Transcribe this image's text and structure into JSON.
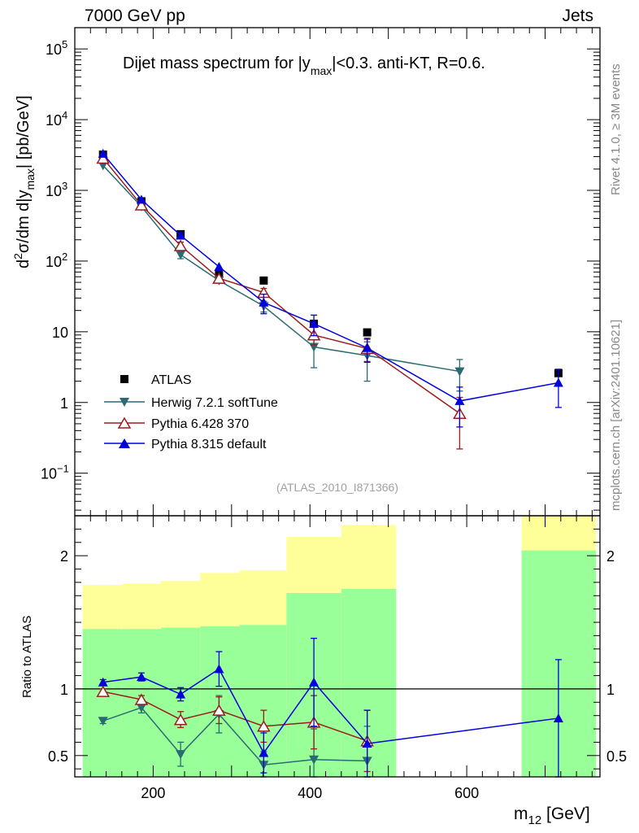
{
  "header": {
    "left": "7000 GeV pp",
    "right": "Jets"
  },
  "side": {
    "top": "Rivet 4.1.0, ≥ 3M events",
    "bottom": "mcplots.cern.ch [arXiv:2401.10621]"
  },
  "colors": {
    "atlas": "#000000",
    "herwig": "#2a6a72",
    "pythia6": "#9b1c1c",
    "pythia8": "#0000dd",
    "band_yellow": "#ffff99",
    "band_green": "#99ff99"
  },
  "chart_data": [
    {
      "type": "scatter",
      "title": "Dijet mass spectrum for |y_max|<0.3.  anti-KT, R=0.6.",
      "title_parts": {
        "a": "Dijet mass spectrum for |y",
        "sub": "max",
        "b": "|<0.3.  anti-KT, R=0.6."
      },
      "ylabel": "d²σ/dm d|y_max| [pb/GeV]",
      "ylabel_parts": {
        "d": "d",
        "sup2": "2",
        "mid": "σ/dm d|y",
        "sub": "max",
        "end": "| [pb/GeV]"
      },
      "yscale": "log",
      "ylim": [
        0.025,
        200000
      ],
      "xlim": [
        100,
        770
      ],
      "yticks": [
        {
          "v": 0.1,
          "base": "10",
          "exp": "−1"
        },
        {
          "v": 1,
          "base": "1",
          "exp": ""
        },
        {
          "v": 10,
          "base": "10",
          "exp": ""
        },
        {
          "v": 100,
          "base": "10",
          "exp": "2"
        },
        {
          "v": 1000,
          "base": "10",
          "exp": "3"
        },
        {
          "v": 10000,
          "base": "10",
          "exp": "4"
        },
        {
          "v": 100000,
          "base": "10",
          "exp": "5"
        }
      ],
      "watermark": "(ATLAS_2010_I871366)",
      "legend_position": "lower-left",
      "series": [
        {
          "name": "ATLAS",
          "marker": "square",
          "x": [
            136,
            185,
            235,
            284,
            341,
            405,
            473,
            717
          ],
          "y": [
            3200,
            700,
            240,
            67,
            53,
            13,
            9.8,
            2.6
          ]
        },
        {
          "name": "Herwig 7.2.1 softTune",
          "marker": "triangle-down",
          "x": [
            136,
            185,
            235,
            284,
            341,
            405,
            473,
            591
          ],
          "y": [
            2250,
            590,
            123,
            53,
            23,
            6.1,
            4.6,
            2.75
          ],
          "yerr": [
            0,
            0,
            15,
            0,
            4,
            3.0,
            2.6,
            1.3
          ]
        },
        {
          "name": "Pythia 6.428 370",
          "marker": "triangle-up-open",
          "x": [
            136,
            185,
            235,
            284,
            341,
            405,
            473,
            591
          ],
          "y": [
            2850,
            620,
            165,
            57,
            36,
            9.0,
            5.8,
            0.7
          ],
          "yerr": [
            0,
            0,
            20,
            0,
            5,
            2.5,
            2.0,
            0.48
          ]
        },
        {
          "name": "Pythia 8.315 default",
          "marker": "triangle-up",
          "x": [
            136,
            185,
            235,
            284,
            341,
            405,
            473,
            591,
            717
          ],
          "y": [
            3300,
            740,
            230,
            83,
            26,
            13,
            5.9,
            1.05,
            1.9
          ],
          "yerr": [
            0,
            0,
            20,
            0,
            8,
            4.2,
            2.2,
            0.6,
            1.05
          ]
        }
      ]
    },
    {
      "type": "scatter",
      "ylabel": "Ratio to ATLAS",
      "xlabel": "m_12 [GeV]",
      "xlabel_parts": {
        "m": "m",
        "sub": "12",
        "unit": " [GeV]"
      },
      "ylim": [
        0.34,
        2.3
      ],
      "xlim": [
        100,
        770
      ],
      "xticks": [
        200,
        400,
        600
      ],
      "yticks": [
        0.5,
        1,
        2
      ],
      "reference_line": 1,
      "bands": {
        "bins": [
          [
            110,
            160
          ],
          [
            160,
            210
          ],
          [
            210,
            260
          ],
          [
            260,
            310
          ],
          [
            310,
            370
          ],
          [
            370,
            440
          ],
          [
            440,
            510
          ],
          [
            670,
            765
          ]
        ],
        "yellow": [
          [
            0.67,
            1.78
          ],
          [
            0.67,
            1.79
          ],
          [
            0.64,
            1.81
          ],
          [
            0.59,
            1.87
          ],
          [
            0.58,
            1.89
          ],
          [
            0.34,
            2.14
          ],
          [
            0.34,
            2.23
          ],
          [
            0.34,
            2.3
          ]
        ],
        "green": [
          [
            0.34,
            1.45
          ],
          [
            0.34,
            1.45
          ],
          [
            0.34,
            1.46
          ],
          [
            0.34,
            1.47
          ],
          [
            0.34,
            1.48
          ],
          [
            0.34,
            1.72
          ],
          [
            0.34,
            1.75
          ],
          [
            0.34,
            2.04
          ]
        ]
      },
      "series": [
        {
          "name": "Herwig 7.2.1 softTune",
          "x": [
            136,
            185,
            235,
            284,
            341,
            405,
            473
          ],
          "y": [
            0.76,
            0.86,
            0.51,
            0.81,
            0.43,
            0.47,
            0.46
          ],
          "yerr": [
            0.02,
            0.04,
            0.09,
            0.14,
            0.1,
            0.23,
            0.26
          ]
        },
        {
          "name": "Pythia 6.428 370",
          "x": [
            136,
            185,
            235,
            284,
            341,
            405,
            473
          ],
          "y": [
            0.98,
            0.92,
            0.77,
            0.84,
            0.72,
            0.75,
            0.61
          ],
          "yerr": [
            0.02,
            0.03,
            0.06,
            0.1,
            0.12,
            0.2,
            0.23
          ]
        },
        {
          "name": "Pythia 8.315 default",
          "x": [
            136,
            185,
            235,
            284,
            341,
            405,
            473,
            717
          ],
          "y": [
            1.05,
            1.09,
            0.96,
            1.15,
            0.52,
            1.05,
            0.59,
            0.78
          ],
          "yerr": [
            0.02,
            0.03,
            0.05,
            0.13,
            0.15,
            0.33,
            0.25,
            0.44
          ]
        }
      ]
    }
  ]
}
